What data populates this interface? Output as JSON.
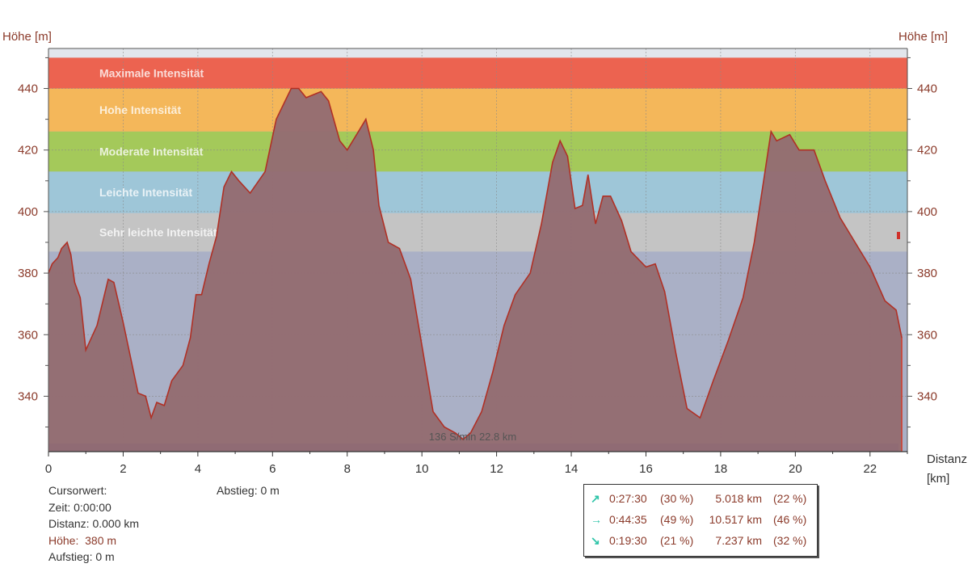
{
  "chart_data": {
    "type": "area",
    "xlabel": "Distanz",
    "xunit": "[km]",
    "ylabel_left": "Höhe [m]",
    "ylabel_right": "Höhe [m]",
    "xlim": [
      0,
      23
    ],
    "ylim": [
      322,
      453
    ],
    "x_ticks": [
      0,
      2,
      4,
      6,
      8,
      10,
      12,
      14,
      16,
      18,
      20,
      22
    ],
    "y_ticks": [
      340,
      360,
      380,
      400,
      420,
      440
    ],
    "grid": true,
    "zones": [
      {
        "name": "Maximale Intensität",
        "from": 440,
        "to": 450,
        "color": "#ec6350"
      },
      {
        "name": "Hohe Intensität",
        "from": 426,
        "to": 440,
        "color": "#f4b75a"
      },
      {
        "name": "Moderate Intensität",
        "from": 413,
        "to": 426,
        "color": "#a4c95a"
      },
      {
        "name": "Leichte Intensität",
        "from": 399.5,
        "to": 413,
        "color": "#9ec6d8"
      },
      {
        "name": "Sehr leichte Intensität",
        "from": 387,
        "to": 399.5,
        "color": "#c4c4c4"
      }
    ],
    "below_zone_color": "#aab0c6",
    "top_strip_color": "#e2e6ec",
    "bottom_bar_color": "#2a4db0",
    "fill_color": "#946c72",
    "line_color": "#b03025",
    "marker_text": "136 S/min 22.8 km",
    "x": [
      0,
      0.1,
      0.25,
      0.35,
      0.5,
      0.6,
      0.7,
      0.85,
      1.0,
      1.3,
      1.6,
      1.75,
      2.0,
      2.4,
      2.6,
      2.75,
      2.9,
      3.1,
      3.3,
      3.6,
      3.8,
      3.95,
      4.1,
      4.3,
      4.5,
      4.7,
      4.9,
      5.1,
      5.4,
      5.8,
      6.1,
      6.5,
      6.7,
      6.9,
      7.1,
      7.3,
      7.5,
      7.8,
      8.0,
      8.25,
      8.5,
      8.7,
      8.85,
      9.1,
      9.4,
      9.7,
      9.95,
      10.3,
      10.6,
      10.9,
      11.1,
      11.3,
      11.6,
      11.9,
      12.2,
      12.5,
      12.9,
      13.2,
      13.5,
      13.7,
      13.9,
      14.1,
      14.3,
      14.45,
      14.65,
      14.85,
      15.05,
      15.35,
      15.6,
      16.0,
      16.25,
      16.5,
      16.8,
      17.1,
      17.45,
      17.8,
      18.2,
      18.6,
      18.9,
      19.15,
      19.35,
      19.5,
      19.85,
      20.1,
      20.5,
      20.8,
      21.2,
      21.6,
      22.0,
      22.4,
      22.7,
      22.85
    ],
    "y": [
      380,
      383,
      385,
      388,
      390,
      386,
      377,
      372,
      355,
      363,
      378,
      377,
      364,
      341,
      340,
      333,
      338,
      337,
      345,
      350,
      359,
      373,
      373,
      383,
      392,
      408,
      413,
      410,
      406,
      413,
      430,
      440,
      440,
      437,
      438,
      439,
      436,
      423,
      420,
      425,
      430,
      420,
      402,
      390,
      388,
      378,
      360,
      335,
      330,
      328,
      326,
      328,
      335,
      348,
      363,
      373,
      380,
      396,
      416,
      423,
      418,
      401,
      402,
      412,
      396,
      405,
      405,
      397,
      387,
      382,
      383,
      374,
      354,
      336,
      333,
      345,
      358,
      372,
      390,
      410,
      426,
      423,
      425,
      420,
      420,
      410,
      398,
      390,
      382,
      371,
      368,
      359
    ],
    "stats": [
      {
        "arrow": "↗",
        "time": "0:27:30",
        "time_pct": "(30 %)",
        "dist": "5.018 km",
        "dist_pct": "(22 %)"
      },
      {
        "arrow": "→",
        "time": "0:44:35",
        "time_pct": "(49 %)",
        "dist": "10.517 km",
        "dist_pct": "(46 %)"
      },
      {
        "arrow": "↘",
        "time": "0:19:30",
        "time_pct": "(21 %)",
        "dist": "7.237 km",
        "dist_pct": "(32 %)"
      }
    ]
  },
  "cursor": {
    "title": "Cursorwert:",
    "zeit": "Zeit: 0:00:00",
    "distanz": "Distanz: 0.000 km",
    "hoehe_label": "Höhe:",
    "hoehe_value": "380 m",
    "aufstieg": "Aufstieg: 0 m",
    "abstieg": "Abstieg: 0 m"
  }
}
